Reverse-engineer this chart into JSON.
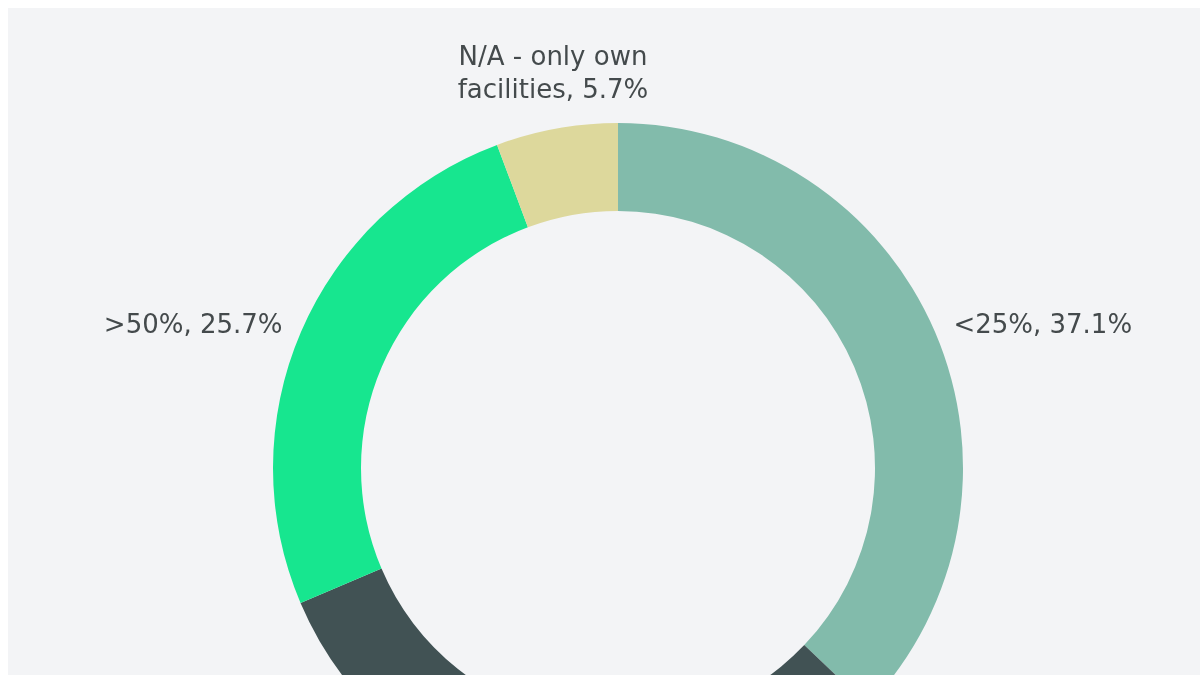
{
  "chart_data": {
    "type": "donut",
    "categories": [
      "<25%",
      null,
      ">50%",
      "N/A - only own facilities"
    ],
    "values": [
      37.1,
      31.5,
      25.7,
      5.7
    ],
    "value_labels": [
      "37.1%",
      null,
      "25.7%",
      "5.7%"
    ],
    "colors": [
      "#82bbab",
      "#415254",
      "#17e68f",
      "#ddd89c"
    ],
    "legend": false
  }
}
